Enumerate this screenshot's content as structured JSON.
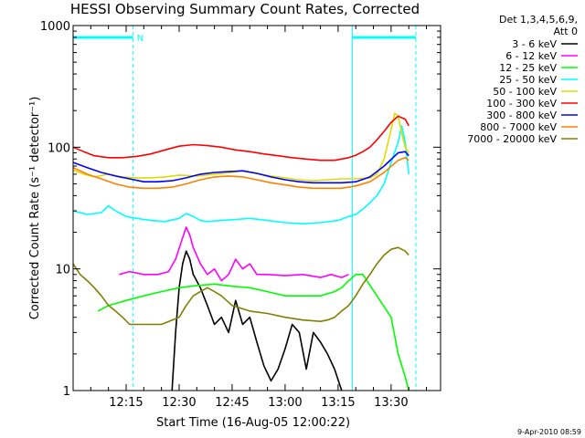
{
  "chart_data": {
    "type": "line",
    "title": "HESSI Observing Summary Count Rates, Corrected",
    "xlabel": "Start Time (16-Aug-05 12:00:22)",
    "ylabel": "Corrected Count Rate (s⁻¹ detector⁻¹)",
    "x_unit": "minutes after 12:00:22",
    "xlim": [
      0,
      104
    ],
    "ylim": [
      1,
      1000
    ],
    "y_scale": "log",
    "x_ticks": [
      {
        "x": 15,
        "label": "12:15"
      },
      {
        "x": 30,
        "label": "12:30"
      },
      {
        "x": 45,
        "label": "12:45"
      },
      {
        "x": 60,
        "label": "13:00"
      },
      {
        "x": 75,
        "label": "13:15"
      },
      {
        "x": 90,
        "label": "13:30"
      }
    ],
    "y_ticks": [
      {
        "y": 1,
        "label": "1"
      },
      {
        "y": 10,
        "label": "10"
      },
      {
        "y": 100,
        "label": "100"
      },
      {
        "y": 1000,
        "label": "1000"
      }
    ],
    "legend_header": [
      "Det 1,3,4,5,6,9,",
      "Att 0"
    ],
    "legend_placement": "right of plot",
    "series": [
      {
        "name": "3 - 6 keV",
        "color": "#000000",
        "x": [
          0,
          28,
          29,
          30,
          31,
          32,
          33,
          34,
          36,
          38,
          40,
          42,
          44,
          46,
          48,
          50,
          52,
          54,
          56,
          58,
          60,
          62,
          64,
          66,
          68,
          70,
          72,
          74,
          76,
          78
        ],
        "y": [
          null,
          1,
          3,
          7,
          11,
          14,
          12,
          9,
          7,
          5,
          3.5,
          4,
          3,
          5.5,
          3.5,
          4,
          2.5,
          1.6,
          1.2,
          1.5,
          2.2,
          3.5,
          3,
          1.5,
          3,
          2.5,
          2,
          1.5,
          1,
          null
        ]
      },
      {
        "name": "6 - 12 keV",
        "color": "#ff00ff",
        "x": [
          13,
          16,
          20,
          24,
          27,
          29,
          31,
          32,
          33,
          34,
          36,
          38,
          40,
          42,
          44,
          46,
          48,
          50,
          52,
          55,
          60,
          65,
          70,
          73,
          76,
          78
        ],
        "y": [
          9,
          9.5,
          9,
          9,
          9.5,
          12,
          18,
          22,
          19,
          15,
          11,
          9,
          10,
          8,
          9,
          12,
          10,
          11,
          9,
          9,
          8.8,
          9,
          8.5,
          9,
          8.5,
          9
        ]
      },
      {
        "name": "12 - 25 keV",
        "color": "#00ff00",
        "x": [
          7,
          10,
          15,
          20,
          25,
          30,
          35,
          40,
          45,
          50,
          55,
          60,
          65,
          70,
          74,
          76,
          78,
          80,
          82,
          86,
          90,
          92,
          94,
          95
        ],
        "y": [
          4.5,
          5,
          5.5,
          6,
          6.5,
          7,
          7.3,
          7.5,
          7.2,
          7,
          6.5,
          6,
          6,
          6,
          6.5,
          7,
          8,
          9,
          9,
          6,
          4,
          2,
          1.3,
          1
        ]
      },
      {
        "name": "25 - 50 keV",
        "color": "#00ffff",
        "x": [
          0,
          4,
          8,
          10,
          12,
          15,
          18,
          22,
          26,
          30,
          32,
          34,
          36,
          38,
          42,
          46,
          50,
          55,
          60,
          65,
          70,
          75,
          78,
          80,
          82,
          84,
          86,
          88,
          90,
          92,
          93,
          94,
          95
        ],
        "y": [
          30,
          28,
          29,
          33,
          30,
          27,
          26,
          25,
          24.5,
          26,
          28.5,
          27,
          25,
          24.5,
          25,
          25.5,
          26,
          25,
          24,
          23.5,
          24,
          25,
          27,
          28,
          31,
          35,
          40,
          50,
          75,
          110,
          150,
          110,
          60
        ]
      },
      {
        "name": "50 - 100 keV",
        "color": "#dddd00",
        "x": [
          0,
          3,
          6,
          10,
          14,
          18,
          22,
          26,
          30,
          35,
          40,
          45,
          48,
          52,
          56,
          60,
          64,
          68,
          72,
          76,
          80,
          84,
          86,
          88,
          90,
          91,
          92,
          93,
          94,
          95
        ],
        "y": [
          65,
          60,
          57,
          60,
          57,
          56,
          56,
          57,
          59,
          58,
          60,
          62,
          64,
          61,
          58,
          56,
          54,
          53,
          54,
          55,
          55,
          56,
          60,
          80,
          140,
          190,
          180,
          130,
          100,
          90
        ]
      },
      {
        "name": "100 - 300 keV",
        "color": "#ff0000",
        "x": [
          0,
          3,
          6,
          10,
          14,
          18,
          22,
          26,
          30,
          34,
          38,
          42,
          46,
          50,
          54,
          58,
          62,
          66,
          70,
          74,
          78,
          80,
          82,
          84,
          86,
          88,
          90,
          92,
          94,
          95
        ],
        "y": [
          100,
          92,
          85,
          82,
          82,
          84,
          88,
          95,
          102,
          105,
          103,
          100,
          95,
          92,
          88,
          85,
          82,
          80,
          78,
          78,
          82,
          86,
          92,
          100,
          115,
          135,
          160,
          180,
          170,
          150
        ]
      },
      {
        "name": "300 - 800 keV",
        "color": "#0000ff",
        "x": [
          0,
          4,
          8,
          12,
          16,
          20,
          24,
          28,
          32,
          36,
          40,
          44,
          48,
          52,
          56,
          60,
          64,
          68,
          72,
          76,
          80,
          84,
          88,
          92,
          94,
          95
        ],
        "y": [
          75,
          68,
          62,
          58,
          55,
          52,
          52,
          53,
          56,
          60,
          62,
          63,
          64,
          61,
          57,
          54,
          52,
          51,
          51,
          51,
          52,
          57,
          70,
          90,
          92,
          85
        ]
      },
      {
        "name": "800 - 7000 keV",
        "color": "#ff8000",
        "x": [
          0,
          4,
          8,
          12,
          16,
          20,
          24,
          28,
          32,
          36,
          40,
          44,
          48,
          52,
          56,
          60,
          64,
          68,
          72,
          76,
          80,
          84,
          88,
          92,
          94,
          95
        ],
        "y": [
          68,
          60,
          55,
          50,
          47,
          46,
          46,
          47,
          50,
          54,
          57,
          58,
          57,
          54,
          51,
          49,
          47,
          46,
          46,
          46,
          48,
          52,
          62,
          78,
          82,
          78
        ]
      },
      {
        "name": "7000 - 20000 keV",
        "color": "#808000",
        "x": [
          0,
          2,
          4,
          6,
          8,
          10,
          12,
          14,
          16,
          20,
          25,
          30,
          32,
          34,
          36,
          38,
          40,
          42,
          45,
          50,
          55,
          60,
          65,
          70,
          72,
          74,
          76,
          78,
          80,
          82,
          84,
          86,
          88,
          90,
          92,
          94,
          95
        ],
        "y": [
          11,
          9,
          8,
          7,
          6,
          5,
          4.5,
          4,
          3.5,
          3.5,
          3.5,
          4,
          5,
          6,
          6.5,
          7,
          6.5,
          6,
          5,
          4.5,
          4.3,
          4,
          3.8,
          3.7,
          3.8,
          4,
          4.5,
          5,
          6,
          7.5,
          9,
          11,
          13,
          14.5,
          15,
          14,
          13
        ]
      }
    ],
    "markers": {
      "vertical_lines": [
        {
          "x": 0,
          "style": "solid",
          "color": "#00ffff"
        },
        {
          "x": 17,
          "style": "dashed",
          "color": "#00ffff"
        },
        {
          "x": 79,
          "style": "solid",
          "color": "#00ffff"
        },
        {
          "x": 97,
          "style": "dashed",
          "color": "#00ffff"
        }
      ],
      "night_bars": [
        {
          "x_start": 0,
          "x_end": 17
        },
        {
          "x_start": 79,
          "x_end": 97
        }
      ],
      "night_label": "N"
    },
    "grid": false
  },
  "footer": {
    "timestamp": "9-Apr-2010 08:59"
  }
}
